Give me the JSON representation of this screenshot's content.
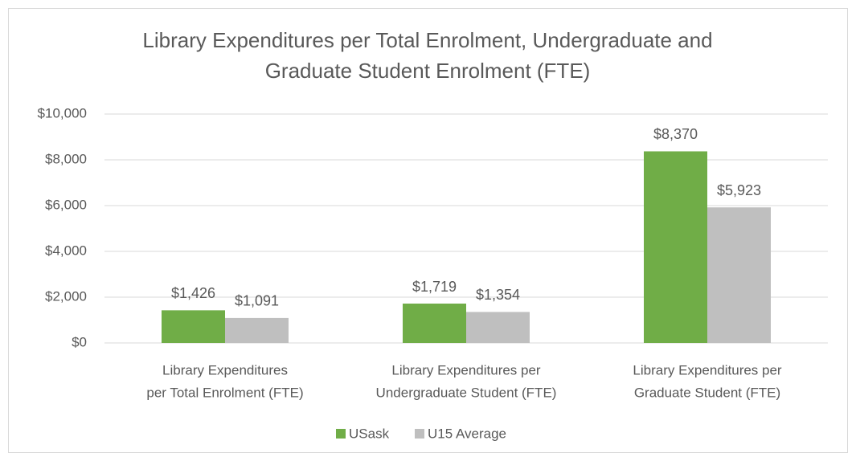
{
  "chart_data": {
    "type": "bar",
    "title": [
      "Library Expenditures per Total Enrolment, Undergraduate and",
      "Graduate Student Enrolment (FTE)"
    ],
    "categories": [
      [
        "Library Expenditures",
        "per Total Enrolment (FTE)"
      ],
      [
        "Library Expenditures per",
        "Undergraduate Student (FTE)"
      ],
      [
        "Library Expenditures per",
        "Graduate Student (FTE)"
      ]
    ],
    "series": [
      {
        "name": "USask",
        "color": "#70ad47",
        "values": [
          1426,
          1719,
          8370
        ],
        "value_labels": [
          "$1,426",
          "$1,719",
          "$8,370"
        ]
      },
      {
        "name": "U15 Average",
        "color": "#bfbfbf",
        "values": [
          1091,
          1354,
          5923
        ],
        "value_labels": [
          "$1,091",
          "$1,354",
          "$5,923"
        ]
      }
    ],
    "ylim": [
      0,
      10000
    ],
    "yticks": [
      {
        "value": 0,
        "label": "$0"
      },
      {
        "value": 2000,
        "label": "$2,000"
      },
      {
        "value": 4000,
        "label": "$4,000"
      },
      {
        "value": 6000,
        "label": "$6,000"
      },
      {
        "value": 8000,
        "label": "$8,000"
      },
      {
        "value": 10000,
        "label": "$10,000"
      }
    ],
    "grid": true,
    "legend": "bottom"
  }
}
